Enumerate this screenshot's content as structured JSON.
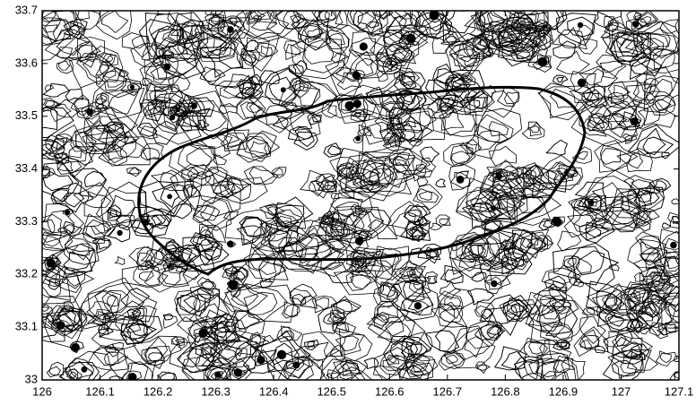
{
  "chart_data": {
    "type": "contour",
    "xlim": [
      126,
      127.1
    ],
    "xticks": [
      126,
      126.1,
      126.2,
      126.3,
      126.4,
      126.5,
      126.6,
      126.7,
      126.8,
      126.9,
      127,
      127.1
    ],
    "ylim": [
      33,
      33.7
    ],
    "yticks": [
      33,
      33.1,
      33.2,
      33.3,
      33.4,
      33.5,
      33.6,
      33.7
    ]
  }
}
